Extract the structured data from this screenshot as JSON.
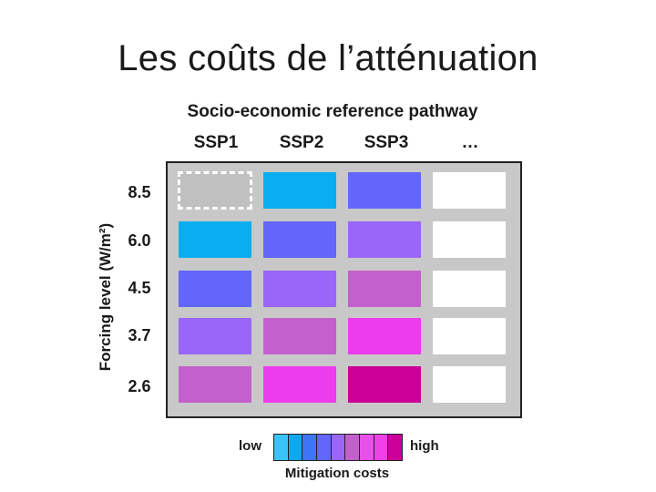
{
  "title": "Les coûts de l’atténuation",
  "matrix": {
    "x_title": "Socio-economic reference pathway",
    "columns": [
      "SSP1",
      "SSP2",
      "SSP3",
      "…"
    ],
    "y_title": "Forcing level (W/m²)",
    "rows": [
      "8.5",
      "6.0",
      "4.5",
      "3.7",
      "2.6"
    ],
    "cells": [
      [
        "#c0c0c0",
        "#0aaef0",
        "#6266fa",
        "#ffffff"
      ],
      [
        "#0aaef0",
        "#6266fa",
        "#9a66f8",
        "#ffffff"
      ],
      [
        "#6266fa",
        "#9a66f8",
        "#c460cc",
        "#ffffff"
      ],
      [
        "#9a66f8",
        "#c460cc",
        "#ec3cec",
        "#ffffff"
      ],
      [
        "#c460cc",
        "#ec3cec",
        "#cc0099",
        "#ffffff"
      ]
    ],
    "highlighted_cell": {
      "row": "8.5",
      "column": "SSP1"
    }
  },
  "legend": {
    "low_label": "low",
    "high_label": "high",
    "title": "Mitigation costs",
    "colors": [
      "#38c4f8",
      "#10a8ec",
      "#3f74f4",
      "#6266fa",
      "#9a66f8",
      "#c460cc",
      "#e850ea",
      "#f040e8",
      "#cc0099"
    ]
  }
}
